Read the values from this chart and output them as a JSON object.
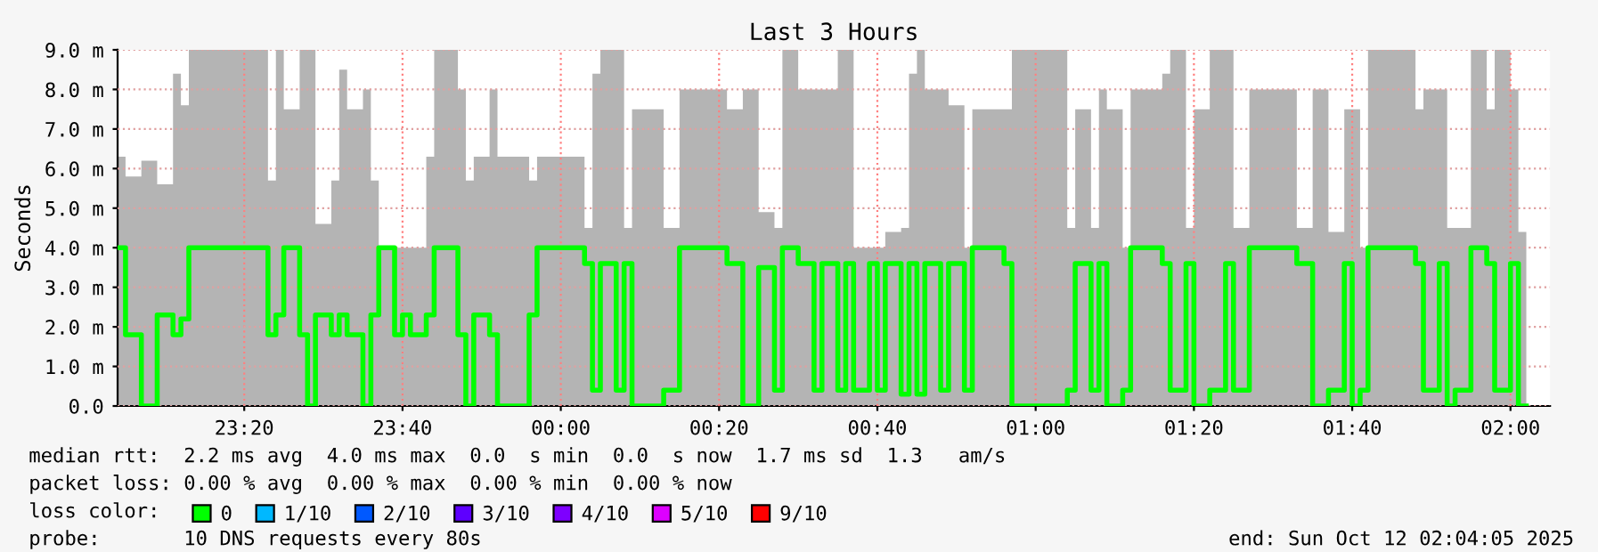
{
  "chart_data": {
    "type": "step",
    "title": "Last 3 Hours",
    "ylabel": "Seconds",
    "x": [
      "2025-10-11T23:04",
      "2025-10-11T23:05",
      "2025-10-11T23:07",
      "2025-10-11T23:09",
      "2025-10-11T23:11",
      "2025-10-11T23:12",
      "2025-10-11T23:13",
      "2025-10-11T23:23",
      "2025-10-11T23:24",
      "2025-10-11T23:25",
      "2025-10-11T23:27",
      "2025-10-11T23:28",
      "2025-10-11T23:29",
      "2025-10-11T23:31",
      "2025-10-11T23:32",
      "2025-10-11T23:33",
      "2025-10-11T23:35",
      "2025-10-11T23:36",
      "2025-10-11T23:37",
      "2025-10-11T23:39",
      "2025-10-11T23:40",
      "2025-10-11T23:41",
      "2025-10-11T23:43",
      "2025-10-11T23:44",
      "2025-10-11T23:47",
      "2025-10-11T23:48",
      "2025-10-11T23:49",
      "2025-10-11T23:51",
      "2025-10-11T23:52",
      "2025-10-11T23:56",
      "2025-10-11T23:57",
      "2025-10-12T00:03",
      "2025-10-12T00:04",
      "2025-10-12T00:05",
      "2025-10-12T00:07",
      "2025-10-12T00:08",
      "2025-10-12T00:09",
      "2025-10-12T00:13",
      "2025-10-12T00:15",
      "2025-10-12T00:21",
      "2025-10-12T00:23",
      "2025-10-12T00:25",
      "2025-10-12T00:27",
      "2025-10-12T00:28",
      "2025-10-12T00:30",
      "2025-10-12T00:32",
      "2025-10-12T00:33",
      "2025-10-12T00:35",
      "2025-10-12T00:36",
      "2025-10-12T00:37",
      "2025-10-12T00:39",
      "2025-10-12T00:40",
      "2025-10-12T00:41",
      "2025-10-12T00:43",
      "2025-10-12T00:44",
      "2025-10-12T00:45",
      "2025-10-12T00:46",
      "2025-10-12T00:48",
      "2025-10-12T00:49",
      "2025-10-12T00:51",
      "2025-10-12T00:52",
      "2025-10-12T00:56",
      "2025-10-12T00:57",
      "2025-10-12T01:04",
      "2025-10-12T01:05",
      "2025-10-12T01:07",
      "2025-10-12T01:08",
      "2025-10-12T01:09",
      "2025-10-12T01:11",
      "2025-10-12T01:12",
      "2025-10-12T01:16",
      "2025-10-12T01:17",
      "2025-10-12T01:19",
      "2025-10-12T01:20",
      "2025-10-12T01:22",
      "2025-10-12T01:24",
      "2025-10-12T01:25",
      "2025-10-12T01:27",
      "2025-10-12T01:33",
      "2025-10-12T01:35",
      "2025-10-12T01:37",
      "2025-10-12T01:39",
      "2025-10-12T01:40",
      "2025-10-12T01:41",
      "2025-10-12T01:42",
      "2025-10-12T01:48",
      "2025-10-12T01:49",
      "2025-10-12T01:51",
      "2025-10-12T01:52",
      "2025-10-12T01:53",
      "2025-10-12T01:55",
      "2025-10-12T01:57",
      "2025-10-12T01:58",
      "2025-10-12T02:00",
      "2025-10-12T02:01",
      "2025-10-12T02:02"
    ],
    "series": [
      {
        "name": "0",
        "color": "#00ff00",
        "values": [
          4.0,
          1.8,
          0.0,
          2.3,
          1.8,
          2.2,
          4.0,
          1.8,
          2.3,
          4.0,
          1.8,
          0.0,
          2.3,
          1.8,
          2.3,
          1.8,
          0.0,
          2.3,
          4.0,
          1.8,
          2.3,
          1.8,
          2.3,
          4.0,
          1.8,
          0.0,
          2.3,
          1.8,
          0.0,
          2.3,
          4.0,
          3.6,
          0.4,
          3.6,
          0.4,
          3.6,
          0.0,
          0.4,
          4.0,
          3.6,
          0.0,
          3.5,
          0.4,
          4.0,
          3.6,
          0.4,
          3.6,
          0.4,
          3.6,
          0.4,
          3.6,
          0.4,
          3.6,
          0.3,
          3.6,
          0.3,
          3.6,
          0.4,
          3.6,
          0.4,
          4.0,
          3.6,
          0.0,
          0.4,
          3.6,
          0.4,
          3.6,
          0.0,
          0.4,
          4.0,
          3.6,
          0.4,
          3.6,
          0.0,
          0.4,
          3.6,
          0.4,
          4.0,
          3.6,
          0.0,
          0.4,
          3.6,
          0.0,
          0.4,
          4.0,
          3.6,
          0.4,
          3.6,
          0.0,
          0.4,
          4.0,
          3.6,
          0.4,
          3.6,
          0.0,
          0.0
        ],
        "lower": [
          0,
          0,
          0,
          0,
          0,
          0,
          0,
          0,
          0,
          0,
          0,
          0,
          0,
          0,
          0,
          0,
          0,
          0,
          0,
          0,
          0,
          0,
          0,
          0,
          0,
          0,
          0,
          0,
          0,
          0,
          0,
          0,
          0,
          0,
          0,
          0,
          0,
          0,
          0,
          0,
          0,
          0,
          0,
          0,
          0,
          0,
          0,
          0,
          0,
          0,
          0,
          0,
          0,
          0,
          0,
          0,
          0,
          0,
          0,
          0,
          0,
          0,
          0,
          0,
          0,
          0,
          0,
          0,
          0,
          0,
          0,
          0,
          0,
          0,
          0,
          0,
          0,
          0,
          0,
          0,
          0,
          0,
          0,
          0,
          0,
          0,
          0,
          0,
          0,
          0,
          0,
          0,
          0,
          0,
          0,
          0
        ],
        "upper": [
          6.3,
          5.8,
          6.2,
          5.6,
          8.4,
          7.6,
          9.0,
          5.7,
          9.0,
          7.5,
          9.0,
          9.0,
          4.6,
          5.7,
          8.5,
          7.5,
          8.0,
          5.7,
          4.0,
          4.0,
          4.0,
          4.0,
          6.3,
          9.0,
          8.0,
          5.7,
          6.3,
          8.0,
          6.3,
          5.7,
          6.3,
          4.5,
          8.4,
          9.0,
          9.0,
          4.5,
          7.5,
          4.5,
          8.0,
          7.5,
          8.0,
          4.9,
          4.5,
          9.0,
          8.0,
          8.0,
          8.0,
          9.0,
          9.0,
          4.0,
          4.0,
          4.0,
          4.4,
          4.5,
          8.4,
          9.0,
          8.0,
          8.0,
          7.6,
          4.0,
          7.5,
          7.5,
          9.0,
          4.5,
          7.5,
          4.5,
          8.0,
          7.5,
          4.0,
          8.0,
          8.4,
          9.0,
          4.5,
          7.5,
          9.0,
          9.0,
          4.5,
          8.0,
          4.5,
          8.0,
          4.4,
          7.5,
          7.5,
          4.0,
          9.0,
          7.5,
          8.0,
          8.0,
          4.5,
          4.5,
          9.0,
          7.5,
          9.0,
          8.0,
          4.4,
          4.4
        ]
      },
      {
        "name": "1/10",
        "color": "#00b8ff",
        "values": [
          null,
          null,
          null,
          null,
          null,
          null,
          null,
          null,
          null,
          null,
          null,
          null,
          null,
          null,
          null,
          null,
          null,
          null,
          null,
          null,
          null,
          null,
          null,
          null,
          null,
          null,
          null,
          null,
          null,
          null,
          null,
          null,
          null,
          null,
          null,
          null,
          null,
          null,
          null,
          null,
          null,
          null,
          null,
          null,
          null,
          null,
          null,
          null,
          null,
          null,
          null,
          null,
          null,
          null,
          null,
          null,
          null,
          null,
          null,
          null,
          null,
          null,
          null,
          null,
          null,
          null,
          null,
          null,
          null,
          null,
          null,
          null,
          null,
          null,
          null,
          null,
          null,
          null,
          null,
          null,
          null,
          null,
          null,
          null,
          null,
          null,
          null,
          null,
          null,
          null,
          null,
          null,
          null,
          null,
          null,
          null
        ]
      },
      {
        "name": "2/10",
        "color": "#0059ff",
        "values": [
          null,
          null,
          null,
          null,
          null,
          null,
          null,
          null,
          null,
          null,
          null,
          null,
          null,
          null,
          null,
          null,
          null,
          null,
          null,
          null,
          null,
          null,
          null,
          null,
          null,
          null,
          null,
          null,
          null,
          null,
          null,
          null,
          null,
          null,
          null,
          null,
          null,
          null,
          null,
          null,
          null,
          null,
          null,
          null,
          null,
          null,
          null,
          null,
          null,
          null,
          null,
          null,
          null,
          null,
          null,
          null,
          null,
          null,
          null,
          null,
          null,
          null,
          null,
          null,
          null,
          null,
          null,
          null,
          null,
          null,
          null,
          null,
          null,
          null,
          null,
          null,
          null,
          null,
          null,
          null,
          null,
          null,
          null,
          null,
          null,
          null,
          null,
          null,
          null,
          null,
          null,
          null,
          null,
          null,
          null,
          null
        ]
      },
      {
        "name": "3/10",
        "color": "#5e00ff",
        "values": [
          null,
          null,
          null,
          null,
          null,
          null,
          null,
          null,
          null,
          null,
          null,
          null,
          null,
          null,
          null,
          null,
          null,
          null,
          null,
          null,
          null,
          null,
          null,
          null,
          null,
          null,
          null,
          null,
          null,
          null,
          null,
          null,
          null,
          null,
          null,
          null,
          null,
          null,
          null,
          null,
          null,
          null,
          null,
          null,
          null,
          null,
          null,
          null,
          null,
          null,
          null,
          null,
          null,
          null,
          null,
          null,
          null,
          null,
          null,
          null,
          null,
          null,
          null,
          null,
          null,
          null,
          null,
          null,
          null,
          null,
          null,
          null,
          null,
          null,
          null,
          null,
          null,
          null,
          null,
          null,
          null,
          null,
          null,
          null,
          null,
          null,
          null,
          null,
          null,
          null,
          null,
          null,
          null,
          null,
          null,
          null
        ]
      },
      {
        "name": "4/10",
        "color": "#7e00ff",
        "values": [
          null,
          null,
          null,
          null,
          null,
          null,
          null,
          null,
          null,
          null,
          null,
          null,
          null,
          null,
          null,
          null,
          null,
          null,
          null,
          null,
          null,
          null,
          null,
          null,
          null,
          null,
          null,
          null,
          null,
          null,
          null,
          null,
          null,
          null,
          null,
          null,
          null,
          null,
          null,
          null,
          null,
          null,
          null,
          null,
          null,
          null,
          null,
          null,
          null,
          null,
          null,
          null,
          null,
          null,
          null,
          null,
          null,
          null,
          null,
          null,
          null,
          null,
          null,
          null,
          null,
          null,
          null,
          null,
          null,
          null,
          null,
          null,
          null,
          null,
          null,
          null,
          null,
          null,
          null,
          null,
          null,
          null,
          null,
          null,
          null,
          null,
          null,
          null,
          null,
          null,
          null,
          null,
          null,
          null,
          null,
          null
        ]
      },
      {
        "name": "5/10",
        "color": "#dd00ff",
        "values": [
          null,
          null,
          null,
          null,
          null,
          null,
          null,
          null,
          null,
          null,
          null,
          null,
          null,
          null,
          null,
          null,
          null,
          null,
          null,
          null,
          null,
          null,
          null,
          null,
          null,
          null,
          null,
          null,
          null,
          null,
          null,
          null,
          null,
          null,
          null,
          null,
          null,
          null,
          null,
          null,
          null,
          null,
          null,
          null,
          null,
          null,
          null,
          null,
          null,
          null,
          null,
          null,
          null,
          null,
          null,
          null,
          null,
          null,
          null,
          null,
          null,
          null,
          null,
          null,
          null,
          null,
          null,
          null,
          null,
          null,
          null,
          null,
          null,
          null,
          null,
          null,
          null,
          null,
          null,
          null,
          null,
          null,
          null,
          null,
          null,
          null,
          null,
          null,
          null,
          null,
          null,
          null,
          null,
          null,
          null,
          null
        ]
      },
      {
        "name": "9/10",
        "color": "#ff0000",
        "values": [
          null,
          null,
          null,
          null,
          null,
          null,
          null,
          null,
          null,
          null,
          null,
          null,
          null,
          null,
          null,
          null,
          null,
          null,
          null,
          null,
          null,
          null,
          null,
          null,
          null,
          null,
          null,
          null,
          null,
          null,
          null,
          null,
          null,
          null,
          null,
          null,
          null,
          null,
          null,
          null,
          null,
          null,
          null,
          null,
          null,
          null,
          null,
          null,
          null,
          null,
          null,
          null,
          null,
          null,
          null,
          null,
          null,
          null,
          null,
          null,
          null,
          null,
          null,
          null,
          null,
          null,
          null,
          null,
          null,
          null,
          null,
          null,
          null,
          null,
          null,
          null,
          null,
          null,
          null,
          null,
          null,
          null,
          null,
          null,
          null,
          null,
          null,
          null,
          null,
          null,
          null,
          null,
          null,
          null,
          null,
          null
        ]
      }
    ],
    "xlim": [
      "2025-10-11T23:04",
      "2025-10-12T02:05"
    ],
    "xticks": [
      {
        "value": "2025-10-11T23:20",
        "label": "23:20"
      },
      {
        "value": "2025-10-11T23:40",
        "label": "23:40"
      },
      {
        "value": "2025-10-12T00:00",
        "label": "00:00"
      },
      {
        "value": "2025-10-12T00:20",
        "label": "00:20"
      },
      {
        "value": "2025-10-12T00:40",
        "label": "00:40"
      },
      {
        "value": "2025-10-12T01:00",
        "label": "01:00"
      },
      {
        "value": "2025-10-12T01:20",
        "label": "01:20"
      },
      {
        "value": "2025-10-12T01:40",
        "label": "01:40"
      },
      {
        "value": "2025-10-12T02:00",
        "label": "02:00"
      }
    ],
    "ylim": [
      0,
      9
    ],
    "yticks": [
      {
        "value": 0,
        "label": "0.0"
      },
      {
        "value": 1,
        "label": "1.0 m"
      },
      {
        "value": 2,
        "label": "2.0 m"
      },
      {
        "value": 3,
        "label": "3.0 m"
      },
      {
        "value": 4,
        "label": "4.0 m"
      },
      {
        "value": 5,
        "label": "5.0 m"
      },
      {
        "value": 6,
        "label": "6.0 m"
      },
      {
        "value": 7,
        "label": "7.0 m"
      },
      {
        "value": 8,
        "label": "8.0 m"
      },
      {
        "value": 9,
        "label": "9.0 m"
      }
    ],
    "grid": true,
    "legend": "bottom left",
    "legend_title": "loss color:",
    "annotations": [
      "median rtt:  2.2 ms avg  4.0 ms max  0.0  s min  0.0  s now  1.7 ms sd  1.3   am/s",
      "packet loss: 0.00 % avg  0.00 % max  0.00 % min  0.00 % now",
      "probe:       10 DNS requests every 80s",
      "end: Sun Oct 12 02:04:05 2025"
    ]
  }
}
